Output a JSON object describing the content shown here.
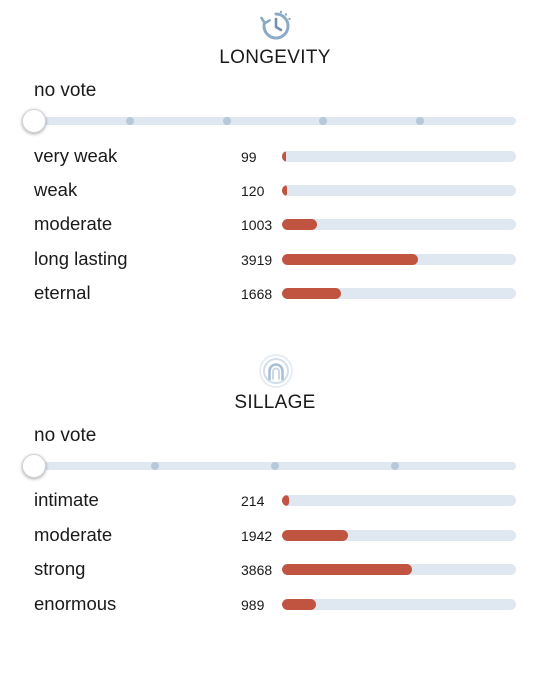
{
  "colors": {
    "bar_fill": "#c05440",
    "bar_track": "#dfe7f1",
    "slider_stop": "#b6c8d9",
    "icon_blue": "#8aaac6"
  },
  "longevity": {
    "icon": "clock-history-icon",
    "title": "LONGEVITY",
    "vote_label": "no vote",
    "slider_stops": 5,
    "rows": [
      {
        "label": "very weak",
        "count": "99",
        "fill_fraction": 0.018
      },
      {
        "label": "weak",
        "count": "120",
        "fill_fraction": 0.02
      },
      {
        "label": "moderate",
        "count": "1003",
        "fill_fraction": 0.15
      },
      {
        "label": "long lasting",
        "count": "3919",
        "fill_fraction": 0.58
      },
      {
        "label": "eternal",
        "count": "1668",
        "fill_fraction": 0.25
      }
    ]
  },
  "sillage": {
    "icon": "sillage-wave-icon",
    "title": "SILLAGE",
    "vote_label": "no vote",
    "slider_stops": 4,
    "rows": [
      {
        "label": "intimate",
        "count": "214",
        "fill_fraction": 0.03
      },
      {
        "label": "moderate",
        "count": "1942",
        "fill_fraction": 0.28
      },
      {
        "label": "strong",
        "count": "3868",
        "fill_fraction": 0.555
      },
      {
        "label": "enormous",
        "count": "989",
        "fill_fraction": 0.145
      }
    ]
  }
}
